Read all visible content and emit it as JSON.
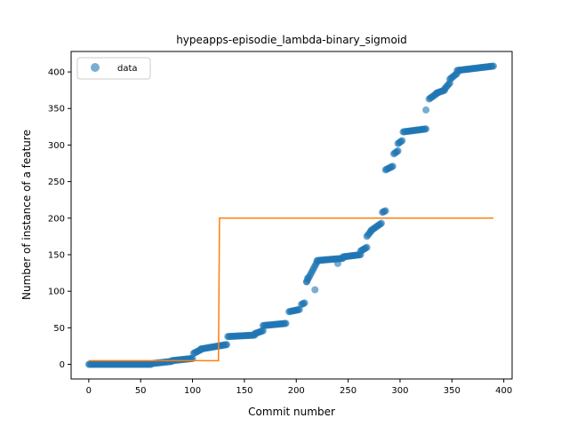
{
  "chart_data": {
    "type": "scatter",
    "title": "hypeapps-episodie_lambda-binary_sigmoid",
    "xlabel": "Commit number",
    "ylabel": "Number of instance of a feature",
    "xlim": [
      -17,
      408
    ],
    "ylim": [
      -20,
      428
    ],
    "xticks": [
      0,
      50,
      100,
      150,
      200,
      250,
      300,
      350,
      400
    ],
    "yticks": [
      0,
      50,
      100,
      150,
      200,
      250,
      300,
      350,
      400
    ],
    "legend": {
      "position": "top-left",
      "entries": [
        "data"
      ]
    },
    "grid": false,
    "colors": {
      "data": "#1f77b4",
      "fit": "#ff7f0e"
    },
    "series": [
      {
        "name": "data",
        "kind": "scatter",
        "segments": [
          {
            "x0": 0,
            "x1": 60,
            "y0": 0,
            "y1": 0
          },
          {
            "x0": 60,
            "x1": 80,
            "y0": 1,
            "y1": 4
          },
          {
            "x0": 80,
            "x1": 100,
            "y0": 5,
            "y1": 8
          },
          {
            "x0": 101,
            "x1": 108,
            "y0": 15,
            "y1": 20
          },
          {
            "x0": 108,
            "x1": 133,
            "y0": 21,
            "y1": 27
          },
          {
            "x0": 134,
            "x1": 160,
            "y0": 38,
            "y1": 40
          },
          {
            "x0": 160,
            "x1": 168,
            "y0": 42,
            "y1": 46
          },
          {
            "x0": 168,
            "x1": 190,
            "y0": 53,
            "y1": 56
          },
          {
            "x0": 193,
            "x1": 203,
            "y0": 72,
            "y1": 75
          },
          {
            "x0": 205,
            "x1": 208,
            "y0": 82,
            "y1": 84
          },
          {
            "x0": 210,
            "x1": 220,
            "y0": 113,
            "y1": 140
          },
          {
            "x0": 220,
            "x1": 245,
            "y0": 142,
            "y1": 145
          },
          {
            "x0": 245,
            "x1": 262,
            "y0": 147,
            "y1": 150
          },
          {
            "x0": 262,
            "x1": 268,
            "y0": 155,
            "y1": 160
          },
          {
            "x0": 268,
            "x1": 272,
            "y0": 175,
            "y1": 182
          },
          {
            "x0": 272,
            "x1": 282,
            "y0": 183,
            "y1": 193
          },
          {
            "x0": 283,
            "x1": 286,
            "y0": 208,
            "y1": 210
          },
          {
            "x0": 286,
            "x1": 293,
            "y0": 266,
            "y1": 271
          },
          {
            "x0": 294,
            "x1": 298,
            "y0": 288,
            "y1": 292
          },
          {
            "x0": 298,
            "x1": 302,
            "y0": 302,
            "y1": 306
          },
          {
            "x0": 303,
            "x1": 325,
            "y0": 318,
            "y1": 322
          },
          {
            "x0": 328,
            "x1": 335,
            "y0": 363,
            "y1": 370
          },
          {
            "x0": 335,
            "x1": 343,
            "y0": 371,
            "y1": 375
          },
          {
            "x0": 343,
            "x1": 348,
            "y0": 377,
            "y1": 385
          },
          {
            "x0": 348,
            "x1": 355,
            "y0": 390,
            "y1": 398
          },
          {
            "x0": 355,
            "x1": 390,
            "y0": 402,
            "y1": 408
          }
        ],
        "outliers": [
          {
            "x": 210,
            "y": 113
          },
          {
            "x": 211,
            "y": 118
          },
          {
            "x": 240,
            "y": 138
          },
          {
            "x": 325,
            "y": 348
          },
          {
            "x": 218,
            "y": 102
          }
        ]
      },
      {
        "kind": "line",
        "x": [
          0,
          125,
          126,
          390
        ],
        "y": [
          5,
          5,
          200,
          200
        ]
      }
    ]
  }
}
